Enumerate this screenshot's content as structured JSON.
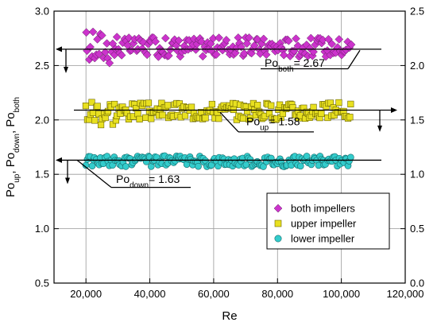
{
  "chart_data": {
    "type": "scatter",
    "title": "",
    "xlabel": "Re",
    "ylabel": {
      "parts": [
        [
          "Po",
          ""
        ],
        [
          "up",
          "sub"
        ],
        [
          ", Po",
          ""
        ],
        [
          "down",
          "sub"
        ],
        [
          ", Po",
          ""
        ],
        [
          "both",
          "sub"
        ]
      ]
    },
    "xlim": [
      10000,
      120000
    ],
    "ylim": [
      0.5,
      3.0
    ],
    "y2lim": [
      0.0,
      2.5
    ],
    "x_ticks": [
      20000,
      40000,
      60000,
      80000,
      100000,
      120000
    ],
    "x_tick_labels": [
      "20,000",
      "40,000",
      "60,000",
      "80,000",
      "100,000",
      "120,000"
    ],
    "y_ticks": [
      0.5,
      1.0,
      1.5,
      2.0,
      2.5,
      3.0
    ],
    "y_tick_labels": [
      "0.5",
      "1.0",
      "1.5",
      "2.0",
      "2.5",
      "3.0"
    ],
    "y2_ticks": [
      0.0,
      0.5,
      1.0,
      1.5,
      2.0,
      2.5
    ],
    "y2_tick_labels": [
      "0.0",
      "0.5",
      "1.0",
      "1.5",
      "2.0",
      "2.5"
    ],
    "grid": true,
    "legend_position": "bottom-right",
    "x_range_data": [
      20000,
      103000
    ],
    "series": [
      {
        "name": "both impellers",
        "marker": "diamond",
        "color": "#cc33cc",
        "mean": 2.67,
        "spread": 0.09,
        "start_spread": 0.16,
        "y_axis": "left"
      },
      {
        "name": "upper impeller",
        "marker": "square",
        "color": "#e8e020",
        "mean": 2.08,
        "spread": 0.08,
        "start_spread": 0.13,
        "y_axis": "left"
      },
      {
        "name": "lower impeller",
        "marker": "circle",
        "color": "#33cccc",
        "mean": 1.62,
        "spread": 0.05,
        "start_spread": 0.05,
        "y_axis": "left"
      }
    ],
    "annotations": [
      {
        "parts": [
          [
            "Po",
            ""
          ],
          [
            "both",
            "sub"
          ],
          [
            "= 2.67",
            ""
          ]
        ]
      },
      {
        "parts": [
          [
            "Po",
            ""
          ],
          [
            "up",
            "sub"
          ],
          [
            "= 1.58",
            ""
          ]
        ]
      },
      {
        "parts": [
          [
            "Po",
            ""
          ],
          [
            "down",
            "sub"
          ],
          [
            "= 1.63",
            ""
          ]
        ]
      }
    ]
  }
}
